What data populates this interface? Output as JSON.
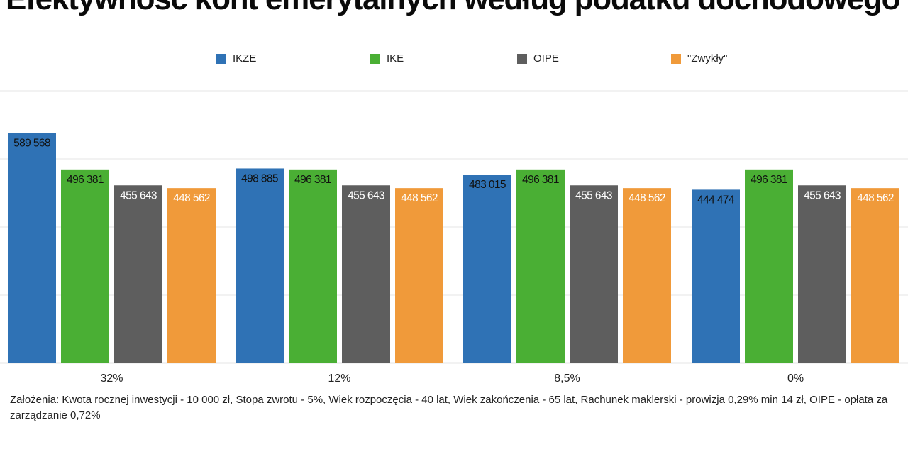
{
  "chart_data": {
    "type": "bar",
    "title": "Efektywność kont emerytalnych według podatku dochodowego",
    "categories": [
      "32%",
      "12%",
      "8,5%",
      "0%"
    ],
    "series": [
      {
        "name": "IKZE",
        "color": "#2f72b5",
        "values": [
          589568,
          498885,
          483015,
          444474
        ],
        "value_labels": [
          "589 568",
          "498 885",
          "483 015",
          "444 474"
        ],
        "label_color": "#111111"
      },
      {
        "name": "IKE",
        "color": "#4aaf34",
        "values": [
          496381,
          496381,
          496381,
          496381
        ],
        "value_labels": [
          "496 381",
          "496 381",
          "496 381",
          "496 381"
        ],
        "label_color": "#111111"
      },
      {
        "name": "OIPE",
        "color": "#5e5e5e",
        "values": [
          455643,
          455643,
          455643,
          455643
        ],
        "value_labels": [
          "455 643",
          "455 643",
          "455 643",
          "455 643"
        ],
        "label_color": "#ffffff"
      },
      {
        "name": "\"Zwykły\"",
        "color": "#f09a3a",
        "values": [
          448562,
          448562,
          448562,
          448562
        ],
        "value_labels": [
          "448 562",
          "448 562",
          "448 562",
          "448 562"
        ],
        "label_color": "#ffffff"
      }
    ],
    "ylim": [
      0,
      785000
    ],
    "grid": true,
    "legend_position": "top"
  },
  "footnote": "Założenia: Kwota rocznej inwestycji - 10 000 zł, Stopa zwrotu - 5%, Wiek rozpoczęcia - 40 lat, Wiek zakończenia - 65 lat, Rachunek maklerski - prowizja 0,29% min 14 zł, OIPE - opłata za zarządzanie 0,72%"
}
